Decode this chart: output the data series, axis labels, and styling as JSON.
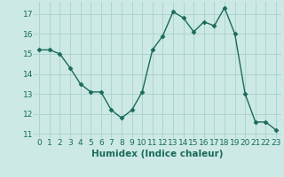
{
  "x": [
    0,
    1,
    2,
    3,
    4,
    5,
    6,
    7,
    8,
    9,
    10,
    11,
    12,
    13,
    14,
    15,
    16,
    17,
    18,
    19,
    20,
    21,
    22,
    23
  ],
  "y": [
    15.2,
    15.2,
    15.0,
    14.3,
    13.5,
    13.1,
    13.1,
    12.2,
    11.8,
    12.2,
    13.1,
    15.2,
    15.9,
    17.1,
    16.8,
    16.1,
    16.6,
    16.4,
    17.3,
    16.0,
    13.0,
    11.6,
    11.6,
    11.2
  ],
  "xlabel": "Humidex (Indice chaleur)",
  "ylim": [
    10.8,
    17.6
  ],
  "xlim": [
    -0.5,
    23.5
  ],
  "yticks": [
    11,
    12,
    13,
    14,
    15,
    16,
    17
  ],
  "xticks": [
    0,
    1,
    2,
    3,
    4,
    5,
    6,
    7,
    8,
    9,
    10,
    11,
    12,
    13,
    14,
    15,
    16,
    17,
    18,
    19,
    20,
    21,
    22,
    23
  ],
  "line_color": "#1a6b5a",
  "marker": "D",
  "marker_size": 2.5,
  "bg_color": "#cce9e5",
  "grid_color": "#aed4cf",
  "tick_color": "#1a6b5a",
  "tick_label_fontsize": 6.5,
  "xlabel_fontsize": 7.5
}
